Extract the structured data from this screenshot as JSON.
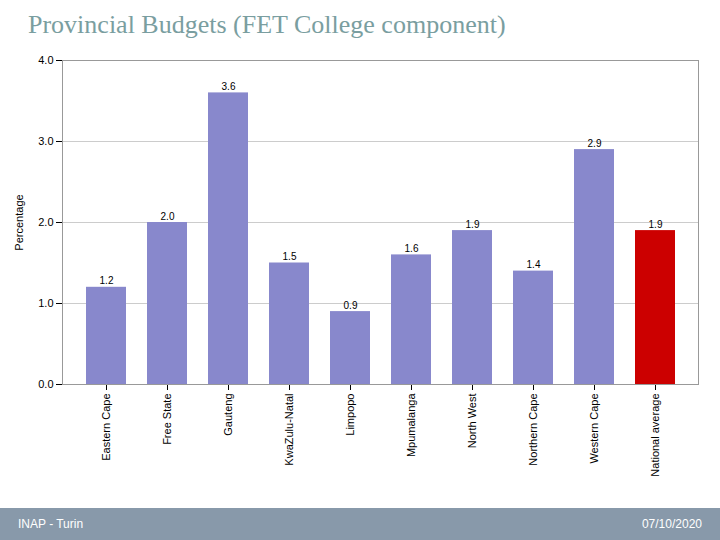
{
  "chart_data": {
    "type": "bar",
    "title": "Provincial Budgets (FET College component)",
    "categories": [
      "Eastern Cape",
      "Free State",
      "Gauteng",
      "KwaZulu-Natal",
      "Limpopo",
      "Mpumalanga",
      "North West",
      "Northern Cape",
      "Western Cape",
      "National average"
    ],
    "values": [
      1.2,
      2.0,
      3.6,
      1.5,
      0.9,
      1.6,
      1.9,
      1.4,
      2.9,
      1.9
    ],
    "value_labels": [
      "1.2",
      "2.0",
      "3.6",
      "1.5",
      "0.9",
      "1.6",
      "1.9",
      "1.4",
      "2.9",
      "1.9"
    ],
    "colors": [
      "#8888cc",
      "#8888cc",
      "#8888cc",
      "#8888cc",
      "#8888cc",
      "#8888cc",
      "#8888cc",
      "#8888cc",
      "#8888cc",
      "#cc0000"
    ],
    "ylabel": "Percentage",
    "ylim": [
      0,
      4
    ],
    "yticks": [
      0,
      1,
      2,
      3,
      4
    ],
    "grid": true,
    "data_labels": true,
    "annotations": [
      "INAP - Turin",
      "07/10/2020"
    ]
  }
}
